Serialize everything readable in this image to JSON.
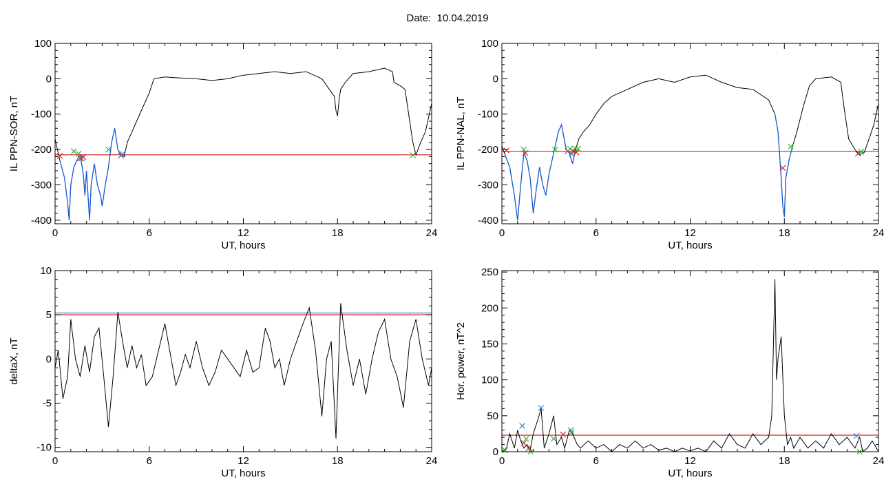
{
  "page": {
    "title": "Date:  10.04.2019"
  },
  "colors": {
    "data": "#000000",
    "storm": "#1a5fd6",
    "threshold": "#d21e1e",
    "marker_green": "#22b02a",
    "marker_red": "#c81e1e",
    "marker_blue": "#2e7de0"
  },
  "chart_data": [
    {
      "type": "line",
      "id": "sor",
      "xlabel": "UT, hours",
      "ylabel": "IL PPN-SOR, nT",
      "xlim": [
        0,
        24
      ],
      "ylim": [
        -410,
        100
      ],
      "xticks": [
        0,
        6,
        12,
        18,
        24
      ],
      "yticks": [
        -400,
        -300,
        -200,
        -100,
        0,
        100
      ],
      "xtick_labels": [
        "0",
        "6",
        "12",
        "18",
        "24"
      ],
      "ytick_labels": [
        "-400",
        "-300",
        "-200",
        "-100",
        "0",
        "100"
      ],
      "threshold": -215,
      "storm_intervals": [
        [
          0.2,
          4.3
        ]
      ],
      "series": [
        {
          "x": [
            0,
            0.3,
            0.6,
            0.8,
            0.9,
            1.0,
            1.2,
            1.4,
            1.6,
            1.8,
            1.9,
            2.0,
            2.2,
            2.3,
            2.5,
            2.7,
            2.9,
            3.0,
            3.2,
            3.4,
            3.6,
            3.8,
            4.0,
            4.2,
            4.4,
            4.6,
            4.9,
            5.2,
            5.6,
            6.0,
            6.3,
            7,
            8,
            9,
            10,
            11,
            12,
            13,
            14,
            15,
            16,
            17,
            17.8,
            17.9,
            18.0,
            18.1,
            18.2,
            18.5,
            19,
            20,
            21,
            21.5,
            21.6,
            22.0,
            22.3,
            22.6,
            22.8,
            23.0,
            23.3,
            23.6,
            24
          ],
          "y": [
            -170,
            -230,
            -280,
            -350,
            -400,
            -300,
            -250,
            -230,
            -215,
            -270,
            -330,
            -260,
            -400,
            -300,
            -240,
            -300,
            -330,
            -360,
            -300,
            -250,
            -180,
            -140,
            -200,
            -215,
            -220,
            -180,
            -150,
            -120,
            -80,
            -40,
            0,
            5,
            2,
            0,
            -5,
            0,
            10,
            15,
            20,
            15,
            20,
            0,
            -50,
            -90,
            -105,
            -60,
            -30,
            -10,
            15,
            20,
            30,
            20,
            -10,
            -20,
            -30,
            -120,
            -180,
            -215,
            -180,
            -150,
            -70
          ]
        }
      ],
      "markers": [
        {
          "x": 0.3,
          "y": -218,
          "color": "marker_red"
        },
        {
          "x": 1.2,
          "y": -205,
          "color": "marker_green"
        },
        {
          "x": 1.5,
          "y": -212,
          "color": "marker_green"
        },
        {
          "x": 1.6,
          "y": -225,
          "color": "marker_red"
        },
        {
          "x": 1.7,
          "y": -225,
          "color": "marker_blue"
        },
        {
          "x": 1.8,
          "y": -222,
          "color": "marker_red"
        },
        {
          "x": 3.4,
          "y": -200,
          "color": "marker_green"
        },
        {
          "x": 4.2,
          "y": -217,
          "color": "marker_red"
        },
        {
          "x": 4.3,
          "y": -213,
          "color": "marker_blue"
        },
        {
          "x": 22.8,
          "y": -216,
          "color": "marker_green"
        }
      ]
    },
    {
      "type": "line",
      "id": "nal",
      "xlabel": "UT, hours",
      "ylabel": "IL PPN-NAL, nT",
      "xlim": [
        0,
        24
      ],
      "ylim": [
        -410,
        100
      ],
      "xticks": [
        0,
        6,
        12,
        18,
        24
      ],
      "yticks": [
        -400,
        -300,
        -200,
        -100,
        0,
        100
      ],
      "xtick_labels": [
        "0",
        "6",
        "12",
        "18",
        "24"
      ],
      "ytick_labels": [
        "-400",
        "-300",
        "-200",
        "-100",
        "0",
        "100"
      ],
      "threshold": -205,
      "storm_intervals": [
        [
          0.2,
          4.8
        ],
        [
          17.4,
          18.6
        ]
      ],
      "series": [
        {
          "x": [
            0,
            0.2,
            0.5,
            0.8,
            1.0,
            1.2,
            1.4,
            1.6,
            1.8,
            2.0,
            2.2,
            2.4,
            2.6,
            2.8,
            3.0,
            3.2,
            3.4,
            3.6,
            3.8,
            4.1,
            4.3,
            4.5,
            4.7,
            4.9,
            5.2,
            5.6,
            6.0,
            6.5,
            7,
            8,
            9,
            10,
            11,
            12,
            13,
            14,
            15,
            16,
            17,
            17.4,
            17.6,
            17.8,
            17.9,
            18.0,
            18.1,
            18.3,
            18.5,
            18.8,
            19.2,
            19.6,
            20,
            21,
            21.6,
            21.8,
            22.1,
            22.5,
            22.8,
            23.1,
            23.4,
            23.7,
            24
          ],
          "y": [
            -190,
            -215,
            -250,
            -330,
            -400,
            -300,
            -210,
            -230,
            -280,
            -380,
            -310,
            -250,
            -300,
            -330,
            -270,
            -230,
            -190,
            -150,
            -130,
            -200,
            -210,
            -240,
            -200,
            -170,
            -150,
            -130,
            -100,
            -70,
            -50,
            -30,
            -10,
            0,
            -10,
            5,
            10,
            -10,
            -25,
            -30,
            -60,
            -100,
            -150,
            -280,
            -360,
            -390,
            -280,
            -230,
            -195,
            -150,
            -80,
            -20,
            0,
            5,
            -10,
            -80,
            -170,
            -200,
            -215,
            -208,
            -170,
            -130,
            -70
          ]
        }
      ],
      "markers": [
        {
          "x": 0.3,
          "y": -203,
          "color": "marker_red"
        },
        {
          "x": 1.4,
          "y": -200,
          "color": "marker_green"
        },
        {
          "x": 1.5,
          "y": -210,
          "color": "marker_red"
        },
        {
          "x": 3.4,
          "y": -200,
          "color": "marker_green"
        },
        {
          "x": 4.2,
          "y": -205,
          "color": "marker_red"
        },
        {
          "x": 4.35,
          "y": -198,
          "color": "marker_green"
        },
        {
          "x": 4.45,
          "y": -213,
          "color": "marker_blue"
        },
        {
          "x": 4.55,
          "y": -205,
          "color": "marker_red"
        },
        {
          "x": 4.65,
          "y": -197,
          "color": "marker_green"
        },
        {
          "x": 4.75,
          "y": -208,
          "color": "marker_red"
        },
        {
          "x": 4.85,
          "y": -198,
          "color": "marker_green"
        },
        {
          "x": 17.9,
          "y": -252,
          "color": "marker_red"
        },
        {
          "x": 18.4,
          "y": -192,
          "color": "marker_green"
        },
        {
          "x": 22.7,
          "y": -212,
          "color": "marker_red"
        },
        {
          "x": 22.9,
          "y": -206,
          "color": "marker_green"
        }
      ]
    },
    {
      "type": "line",
      "id": "deltax",
      "xlabel": "UT, hours",
      "ylabel": "deltaX, nT",
      "xlim": [
        0,
        24
      ],
      "ylim": [
        -10.5,
        10
      ],
      "xticks": [
        0,
        6,
        12,
        18,
        24
      ],
      "yticks": [
        -10,
        -5,
        0,
        5,
        10
      ],
      "xtick_labels": [
        "0",
        "6",
        "12",
        "18",
        "24"
      ],
      "ytick_labels": [
        "-10",
        "-5",
        "0",
        "5",
        "10"
      ],
      "threshold": 5.0,
      "threshold_extra": [
        {
          "y": 5.2,
          "color": "storm"
        }
      ],
      "storm_intervals": [],
      "series": [
        {
          "x": [
            0,
            0.2,
            0.5,
            0.8,
            1.0,
            1.3,
            1.6,
            1.9,
            2.2,
            2.5,
            2.8,
            3.1,
            3.4,
            3.7,
            4.0,
            4.3,
            4.6,
            4.9,
            5.2,
            5.5,
            5.8,
            6.2,
            6.6,
            7.0,
            7.4,
            7.7,
            8.0,
            8.3,
            8.6,
            9.0,
            9.4,
            9.8,
            10.2,
            10.6,
            11.0,
            11.4,
            11.8,
            12.2,
            12.6,
            13.0,
            13.4,
            13.7,
            14.0,
            14.3,
            14.6,
            15.0,
            15.4,
            15.8,
            16.2,
            16.6,
            17.0,
            17.3,
            17.6,
            17.9,
            18.2,
            18.6,
            19.0,
            19.4,
            19.8,
            20.2,
            20.6,
            21.0,
            21.4,
            21.8,
            22.2,
            22.6,
            23.0,
            23.4,
            23.8,
            24
          ],
          "y": [
            -1,
            1,
            -4.5,
            -2,
            4.5,
            0,
            -2,
            1.5,
            -1.5,
            2.5,
            3.5,
            -2,
            -7.7,
            -2,
            5.3,
            2,
            -1,
            1.5,
            -1,
            0.5,
            -3,
            -2,
            1,
            4,
            0,
            -3,
            -1.5,
            0.5,
            -1,
            2,
            -1,
            -3,
            -1.5,
            1,
            0,
            -1,
            -2,
            1,
            -1.5,
            -1,
            3.5,
            2,
            -1,
            0,
            -3,
            0,
            2,
            4,
            5.8,
            1,
            -6.5,
            0,
            2,
            -9,
            6.3,
            1,
            -3,
            0,
            -4,
            0,
            3,
            4.5,
            0,
            -2,
            -5.5,
            2,
            4.5,
            0,
            -3,
            -1
          ]
        }
      ],
      "markers": []
    },
    {
      "type": "line",
      "id": "power",
      "xlabel": "UT, hours",
      "ylabel": "Hor. power, nT^2",
      "xlim": [
        0,
        24
      ],
      "ylim": [
        0,
        252
      ],
      "xticks": [
        0,
        6,
        12,
        18,
        24
      ],
      "yticks": [
        0,
        50,
        100,
        150,
        200,
        250
      ],
      "xtick_labels": [
        "0",
        "6",
        "12",
        "18",
        "24"
      ],
      "ytick_labels": [
        "0",
        "50",
        "100",
        "150",
        "200",
        "250"
      ],
      "threshold": 23,
      "storm_intervals": [],
      "series": [
        {
          "x": [
            0,
            0.3,
            0.5,
            0.8,
            1.0,
            1.2,
            1.4,
            1.6,
            1.8,
            2.0,
            2.3,
            2.5,
            2.7,
            3.0,
            3.3,
            3.5,
            3.8,
            4.0,
            4.3,
            4.5,
            4.8,
            5.0,
            5.5,
            6.0,
            6.5,
            7.0,
            7.5,
            8.0,
            8.5,
            9.0,
            9.5,
            10,
            10.5,
            11,
            11.5,
            12,
            12.5,
            13,
            13.5,
            14,
            14.5,
            15,
            15.5,
            16,
            16.5,
            17.0,
            17.2,
            17.4,
            17.5,
            17.6,
            17.8,
            18.0,
            18.2,
            18.4,
            18.6,
            19,
            19.5,
            20,
            20.5,
            21,
            21.5,
            22,
            22.5,
            22.8,
            23.0,
            23.3,
            23.6,
            24
          ],
          "y": [
            0,
            5,
            25,
            5,
            30,
            15,
            5,
            10,
            2,
            25,
            45,
            60,
            5,
            25,
            50,
            10,
            20,
            5,
            30,
            25,
            10,
            5,
            15,
            5,
            10,
            0,
            10,
            5,
            15,
            5,
            10,
            2,
            5,
            0,
            5,
            1,
            5,
            0,
            15,
            5,
            25,
            10,
            5,
            25,
            10,
            20,
            50,
            240,
            100,
            130,
            160,
            50,
            10,
            20,
            5,
            20,
            5,
            15,
            5,
            25,
            10,
            20,
            5,
            20,
            0,
            5,
            15,
            0
          ]
        }
      ],
      "markers": [
        {
          "x": 0.2,
          "y": 2,
          "color": "marker_green"
        },
        {
          "x": 1.3,
          "y": 36,
          "color": "marker_blue"
        },
        {
          "x": 1.4,
          "y": 12,
          "color": "marker_red"
        },
        {
          "x": 1.55,
          "y": 18,
          "color": "marker_green"
        },
        {
          "x": 1.7,
          "y": 5,
          "color": "marker_red"
        },
        {
          "x": 1.85,
          "y": 0,
          "color": "marker_green"
        },
        {
          "x": 2.5,
          "y": 61,
          "color": "marker_blue"
        },
        {
          "x": 3.3,
          "y": 18,
          "color": "marker_green"
        },
        {
          "x": 3.9,
          "y": 24,
          "color": "marker_red"
        },
        {
          "x": 4.4,
          "y": 30,
          "color": "marker_blue"
        },
        {
          "x": 4.45,
          "y": 27,
          "color": "marker_green"
        },
        {
          "x": 22.6,
          "y": 22,
          "color": "marker_blue"
        },
        {
          "x": 22.8,
          "y": 0,
          "color": "marker_green"
        }
      ]
    }
  ]
}
